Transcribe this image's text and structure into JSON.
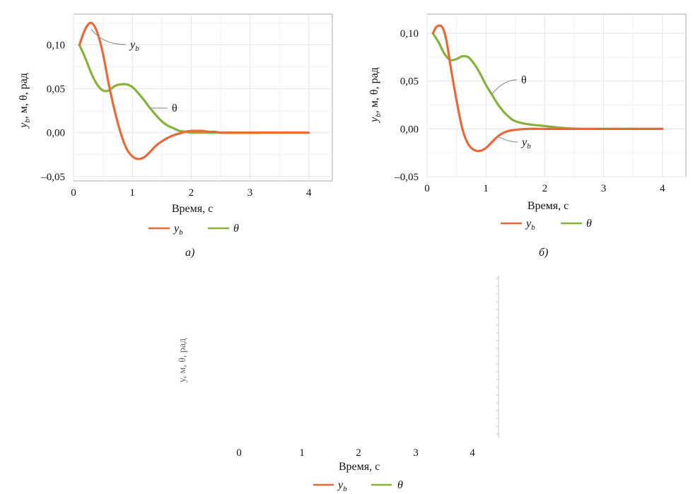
{
  "colors": {
    "y_b": "#e8683a",
    "theta": "#86b13a",
    "grid": "#e4e4e4",
    "frame": "#aaaaaa",
    "leader": "#9a9a9a"
  },
  "chart_data": [
    {
      "type": "line",
      "xlabel": "Время, с",
      "ylabel": "y_b, м, θ, рад",
      "xlim": [
        0,
        4.4
      ],
      "ylim": [
        -0.055,
        0.135
      ],
      "xticks": [
        "0",
        "1",
        "2",
        "3",
        "4"
      ],
      "yticks": [
        "0,10",
        "0,05",
        "0,00",
        "–0,05"
      ],
      "grid": true,
      "legend_position": "bottom",
      "caption": "a)",
      "annotations": [
        {
          "series": 0,
          "text": "y_b"
        },
        {
          "series": 1,
          "text": "θ"
        }
      ],
      "series": [
        {
          "name": "y_b",
          "x": [
            0.1,
            0.2,
            0.3,
            0.4,
            0.5,
            0.6,
            0.7,
            0.8,
            0.9,
            1.0,
            1.1,
            1.2,
            1.3,
            1.4,
            1.5,
            1.6,
            1.7,
            1.8,
            1.9,
            2.0,
            2.1,
            2.2,
            2.3,
            2.4,
            2.5,
            2.7,
            3.0,
            3.5,
            4.0
          ],
          "y": [
            0.1,
            0.118,
            0.125,
            0.115,
            0.09,
            0.055,
            0.025,
            0.0,
            -0.018,
            -0.027,
            -0.03,
            -0.028,
            -0.022,
            -0.015,
            -0.01,
            -0.006,
            -0.003,
            -0.001,
            0.001,
            0.002,
            0.002,
            0.002,
            0.001,
            0.001,
            0.0,
            0.0,
            0.0,
            0.0,
            0.0
          ]
        },
        {
          "name": "θ",
          "x": [
            0.1,
            0.2,
            0.3,
            0.4,
            0.5,
            0.6,
            0.7,
            0.8,
            0.9,
            1.0,
            1.1,
            1.2,
            1.3,
            1.4,
            1.5,
            1.6,
            1.7,
            1.8,
            1.9,
            2.0,
            2.2,
            2.5,
            3.0,
            3.2
          ],
          "y": [
            0.1,
            0.085,
            0.068,
            0.055,
            0.048,
            0.048,
            0.053,
            0.055,
            0.055,
            0.052,
            0.045,
            0.037,
            0.028,
            0.02,
            0.013,
            0.008,
            0.005,
            0.002,
            0.001,
            0.0,
            0.0,
            0.0,
            0.0,
            0.0
          ]
        }
      ]
    },
    {
      "type": "line",
      "xlabel": "Время, с",
      "ylabel": "y_b, м, θ, рад",
      "xlim": [
        0,
        4.4
      ],
      "ylim": [
        -0.05,
        0.12
      ],
      "xticks": [
        "0",
        "1",
        "2",
        "3",
        "4"
      ],
      "yticks": [
        "0,10",
        "0,05",
        "0,00",
        "–0,05"
      ],
      "grid": true,
      "legend_position": "bottom",
      "caption": "б)",
      "annotations": [
        {
          "series": 0,
          "text": "y_b"
        },
        {
          "series": 1,
          "text": "θ"
        }
      ],
      "series": [
        {
          "name": "y_b",
          "x": [
            0.1,
            0.15,
            0.2,
            0.25,
            0.3,
            0.35,
            0.4,
            0.5,
            0.6,
            0.7,
            0.8,
            0.9,
            1.0,
            1.1,
            1.2,
            1.3,
            1.4,
            1.5,
            1.7,
            2.0,
            2.5,
            3.0,
            4.0
          ],
          "y": [
            0.1,
            0.106,
            0.108,
            0.107,
            0.1,
            0.085,
            0.065,
            0.03,
            0.0,
            -0.016,
            -0.022,
            -0.023,
            -0.02,
            -0.014,
            -0.008,
            -0.004,
            -0.002,
            -0.001,
            0.0,
            0.0,
            0.0,
            0.0,
            0.0
          ]
        },
        {
          "name": "θ",
          "x": [
            0.1,
            0.2,
            0.3,
            0.4,
            0.5,
            0.6,
            0.7,
            0.8,
            0.9,
            1.0,
            1.1,
            1.2,
            1.3,
            1.4,
            1.5,
            1.7,
            2.0,
            2.3,
            2.6,
            3.0,
            4.0
          ],
          "y": [
            0.1,
            0.09,
            0.078,
            0.072,
            0.073,
            0.076,
            0.075,
            0.068,
            0.058,
            0.046,
            0.036,
            0.026,
            0.018,
            0.012,
            0.008,
            0.005,
            0.003,
            0.001,
            0.0,
            0.0,
            0.0
          ]
        }
      ]
    },
    {
      "type": "line",
      "xlabel": "Время, с",
      "xticks": [
        "0",
        "1",
        "2",
        "3",
        "4"
      ],
      "legend_position": "bottom",
      "series": [
        {
          "name": "y_b",
          "x": [],
          "y": []
        },
        {
          "name": "θ",
          "x": [],
          "y": []
        }
      ]
    }
  ]
}
